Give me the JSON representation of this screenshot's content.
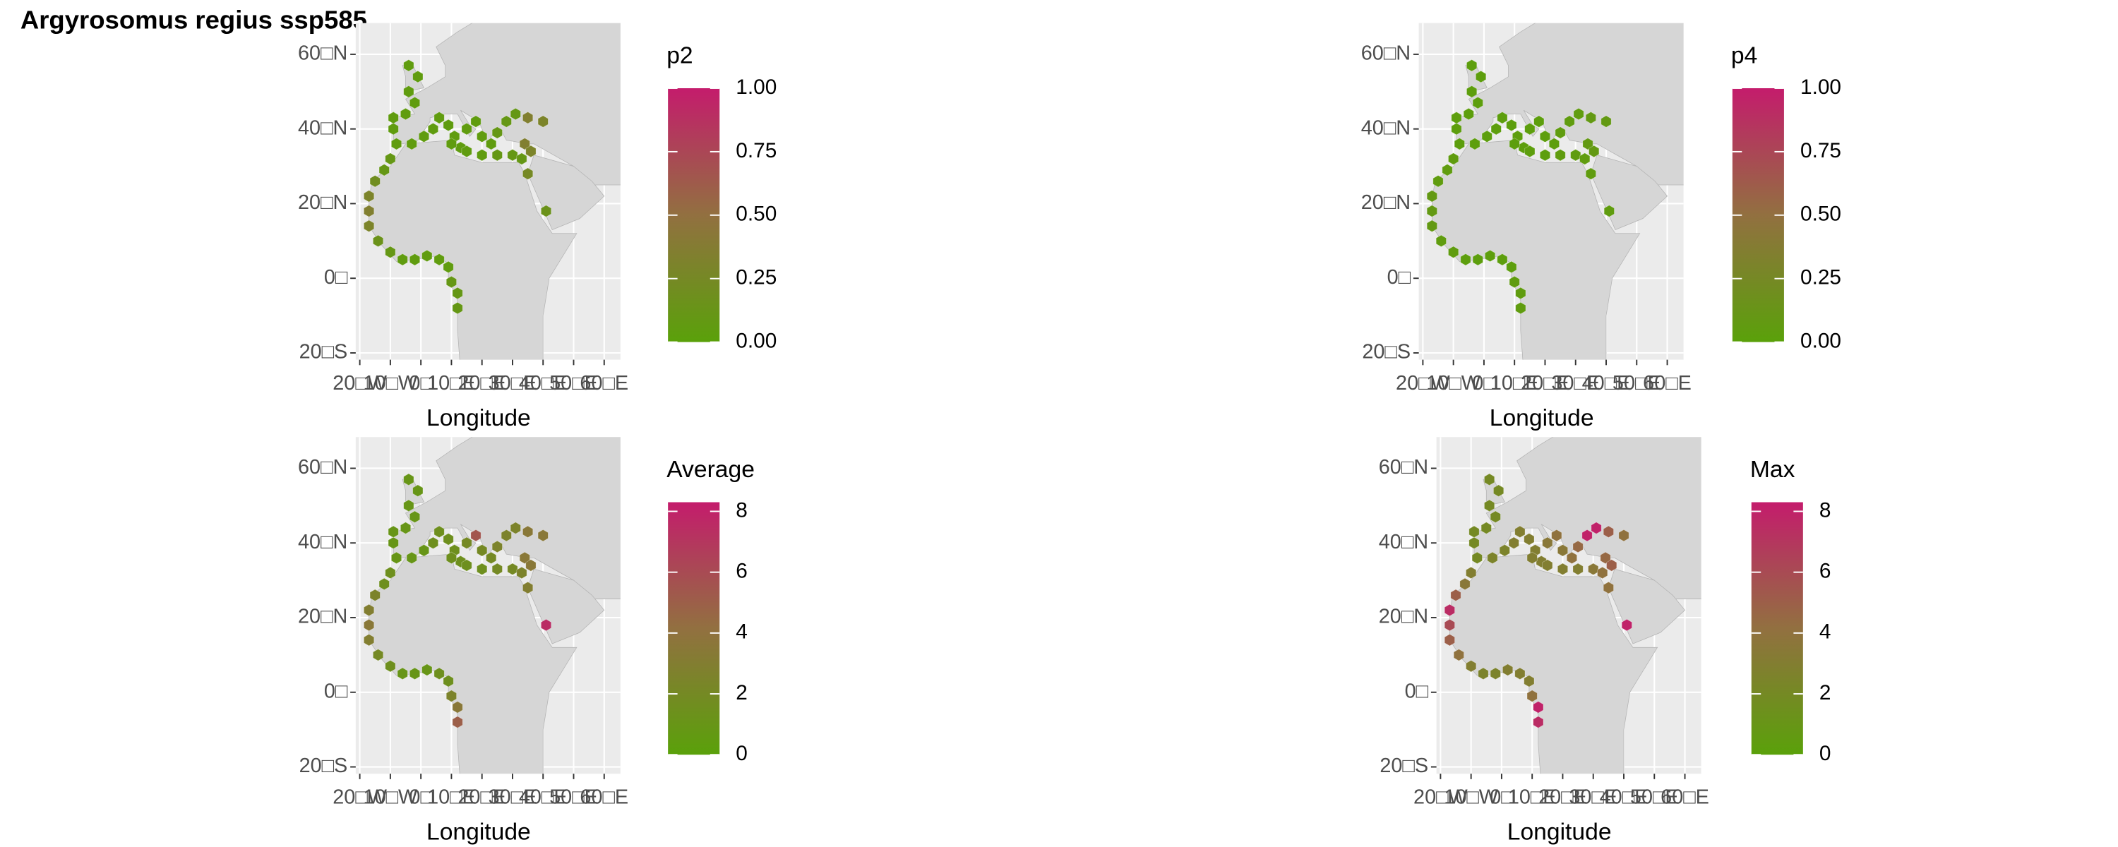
{
  "title": "Argyrosomus regius ssp585",
  "x_label": "Longitude",
  "lat_ticks": [
    {
      "value": 60,
      "label": "60□N"
    },
    {
      "value": 40,
      "label": "40□N"
    },
    {
      "value": 20,
      "label": "20□N"
    },
    {
      "value": 0,
      "label": "0□"
    },
    {
      "value": -20,
      "label": "20□S"
    }
  ],
  "lon_ticks": [
    {
      "value": -20,
      "label": "20□W"
    },
    {
      "value": -10,
      "label": "10□W"
    },
    {
      "value": 0,
      "label": "0□"
    },
    {
      "value": 10,
      "label": "10□E"
    },
    {
      "value": 20,
      "label": "20□E"
    },
    {
      "value": 30,
      "label": "30□E"
    },
    {
      "value": 40,
      "label": "40□E"
    },
    {
      "value": 50,
      "label": "50□E"
    },
    {
      "value": 60,
      "label": "60□E"
    }
  ],
  "color_low": "#5aa10a",
  "color_mid": "#927040",
  "color_high": "#c41c6c",
  "cells": [
    [
      12,
      -8
    ],
    [
      12,
      -4
    ],
    [
      10,
      -1
    ],
    [
      9,
      3
    ],
    [
      6,
      5
    ],
    [
      2,
      6
    ],
    [
      -2,
      5
    ],
    [
      -6,
      5
    ],
    [
      -10,
      7
    ],
    [
      -14,
      10
    ],
    [
      -17,
      14
    ],
    [
      -17,
      18
    ],
    [
      -17,
      22
    ],
    [
      -15,
      26
    ],
    [
      -12,
      29
    ],
    [
      -10,
      32
    ],
    [
      -8,
      36
    ],
    [
      -9,
      40
    ],
    [
      -9,
      43
    ],
    [
      -5,
      44
    ],
    [
      -2,
      47
    ],
    [
      -4,
      50
    ],
    [
      -1,
      54
    ],
    [
      -4,
      57
    ],
    [
      -3,
      36
    ],
    [
      1,
      38
    ],
    [
      4,
      40
    ],
    [
      6,
      43
    ],
    [
      9,
      41
    ],
    [
      11,
      38
    ],
    [
      13,
      35
    ],
    [
      15,
      40
    ],
    [
      18,
      42
    ],
    [
      20,
      38
    ],
    [
      23,
      36
    ],
    [
      25,
      39
    ],
    [
      28,
      42
    ],
    [
      31,
      44
    ],
    [
      35,
      43
    ],
    [
      40,
      42
    ],
    [
      34,
      36
    ],
    [
      30,
      33
    ],
    [
      25,
      33
    ],
    [
      20,
      33
    ],
    [
      15,
      34
    ],
    [
      10,
      36
    ],
    [
      33,
      32
    ],
    [
      36,
      34
    ],
    [
      35,
      28
    ],
    [
      41,
      18
    ]
  ],
  "panels": [
    {
      "legend_title": "p2",
      "limits": [
        0,
        1
      ],
      "ticks": [
        {
          "value": 0,
          "label": "0.00"
        },
        {
          "value": 0.25,
          "label": "0.25"
        },
        {
          "value": 0.5,
          "label": "0.50"
        },
        {
          "value": 0.75,
          "label": "0.75"
        },
        {
          "value": 1,
          "label": "1.00"
        }
      ],
      "values": [
        0.1,
        0.1,
        0.1,
        0.05,
        0.05,
        0.05,
        0.05,
        0.05,
        0.1,
        0.15,
        0.3,
        0.35,
        0.3,
        0.2,
        0.1,
        0.1,
        0.05,
        0.05,
        0.05,
        0.05,
        0.05,
        0.05,
        0.05,
        0.05,
        0.05,
        0.05,
        0.05,
        0.05,
        0.05,
        0.05,
        0.05,
        0.05,
        0.05,
        0.05,
        0.05,
        0.1,
        0.1,
        0.1,
        0.35,
        0.3,
        0.35,
        0.1,
        0.1,
        0.05,
        0.05,
        0.05,
        0.1,
        0.3,
        0.25,
        0.15
      ]
    },
    {
      "legend_title": "p4",
      "limits": [
        0,
        1
      ],
      "ticks": [
        {
          "value": 0,
          "label": "0.00"
        },
        {
          "value": 0.25,
          "label": "0.25"
        },
        {
          "value": 0.5,
          "label": "0.50"
        },
        {
          "value": 0.75,
          "label": "0.75"
        },
        {
          "value": 1,
          "label": "1.00"
        }
      ],
      "values": [
        0.05,
        0.05,
        0.05,
        0.03,
        0.03,
        0.03,
        0.03,
        0.03,
        0.05,
        0.05,
        0.08,
        0.08,
        0.08,
        0.05,
        0.05,
        0.05,
        0.03,
        0.03,
        0.03,
        0.03,
        0.03,
        0.03,
        0.03,
        0.03,
        0.03,
        0.03,
        0.03,
        0.03,
        0.03,
        0.03,
        0.03,
        0.03,
        0.03,
        0.03,
        0.03,
        0.05,
        0.05,
        0.05,
        0.08,
        0.08,
        0.08,
        0.05,
        0.05,
        0.03,
        0.03,
        0.03,
        0.05,
        0.08,
        0.05,
        0.05
      ]
    },
    {
      "legend_title": "Average",
      "limits": [
        0,
        8.3
      ],
      "ticks": [
        0,
        2,
        4,
        6,
        8
      ],
      "values": [
        5,
        3.5,
        2.5,
        1.5,
        1.5,
        1,
        1,
        1,
        1.5,
        2,
        3,
        3.5,
        3,
        2.5,
        1.5,
        1.5,
        1,
        1,
        1,
        1,
        1,
        1,
        1,
        1,
        1,
        1,
        1.5,
        1.5,
        1.5,
        1.5,
        1.5,
        2,
        5.5,
        2,
        2,
        2.5,
        2.5,
        2.5,
        3.5,
        3.5,
        3.5,
        2,
        2,
        1.5,
        1.5,
        1.5,
        2.5,
        3.5,
        3,
        7.5
      ]
    },
    {
      "legend_title": "Max",
      "limits": [
        0,
        8.3
      ],
      "ticks": [
        0,
        2,
        4,
        6,
        8
      ],
      "values": [
        7.5,
        8,
        4,
        3,
        3,
        3,
        2.5,
        2.5,
        3,
        4,
        5,
        6,
        7.5,
        5,
        3.5,
        3,
        2,
        2,
        2,
        2,
        2,
        2,
        2,
        2,
        2.5,
        2.5,
        3,
        3,
        3,
        3,
        3,
        3.5,
        4,
        3.5,
        4,
        4.5,
        8,
        8,
        5,
        4,
        4.5,
        3.5,
        3,
        3,
        3,
        3,
        4,
        5,
        4,
        8
      ]
    }
  ]
}
